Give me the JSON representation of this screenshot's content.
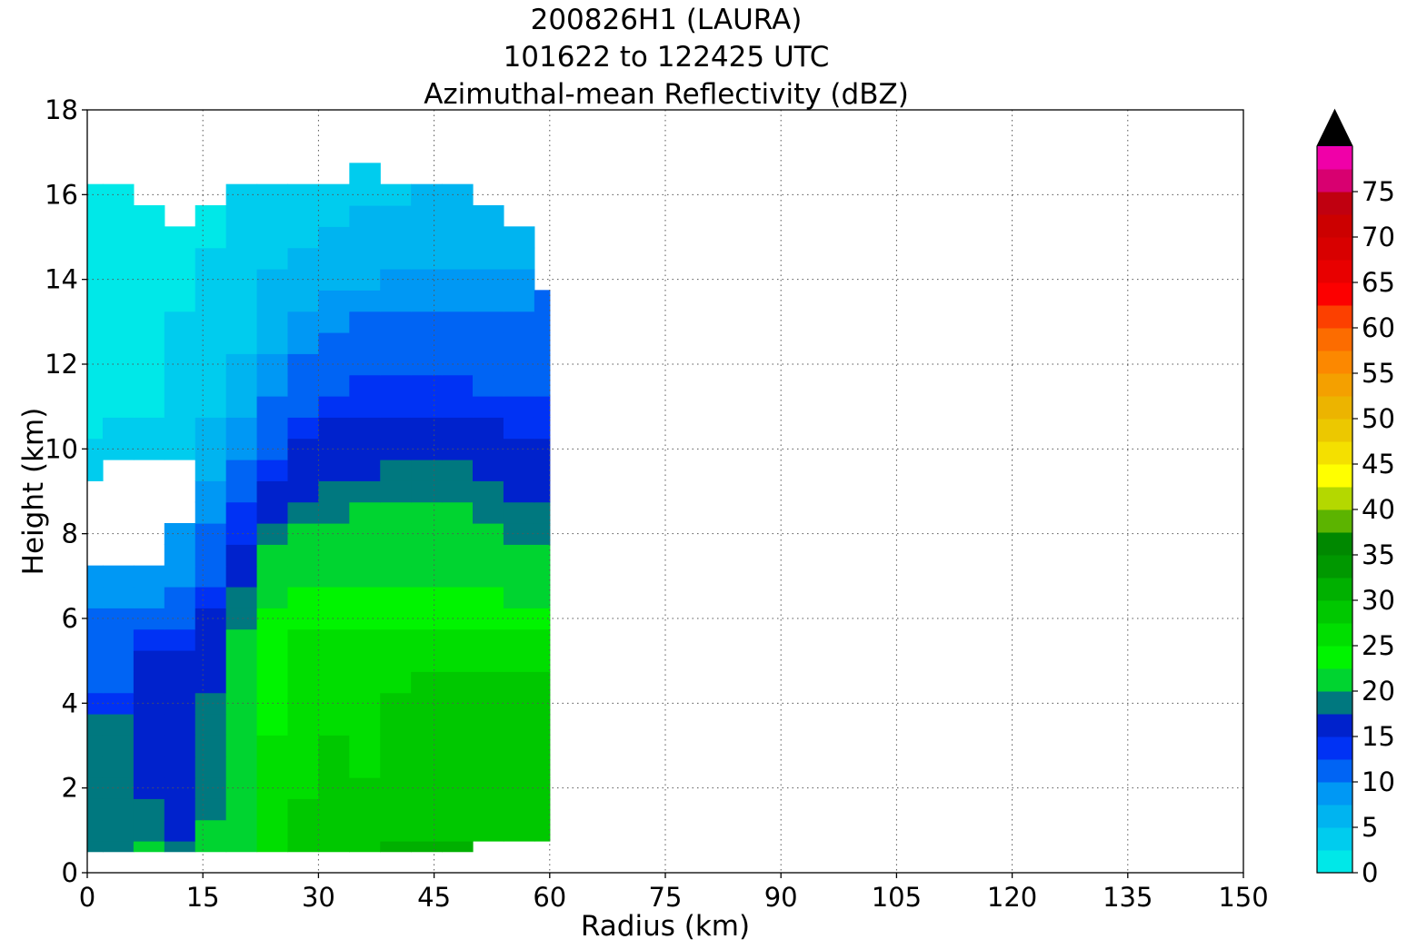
{
  "chart_data": {
    "type": "heatmap",
    "title_lines": [
      "200826H1 (LAURA)",
      "101622 to 122425 UTC",
      "Azimuthal-mean Reflectivity (dBZ)"
    ],
    "xlabel": "Radius (km)",
    "ylabel": "Height (km)",
    "xlim": [
      0,
      150
    ],
    "ylim": [
      0,
      18
    ],
    "x_ticks": [
      0,
      15,
      30,
      45,
      60,
      75,
      90,
      105,
      120,
      135,
      150
    ],
    "y_ticks": [
      0,
      2,
      4,
      6,
      8,
      10,
      12,
      14,
      16,
      18
    ],
    "grid": true,
    "colorbar": {
      "min": 0,
      "max": 80,
      "step": 2.5,
      "extend": "max",
      "ticks": [
        0,
        5,
        10,
        15,
        20,
        25,
        30,
        35,
        40,
        45,
        50,
        55,
        60,
        65,
        70,
        75
      ],
      "colors": [
        "#00e8e8",
        "#00ccee",
        "#00b4f0",
        "#0098f4",
        "#0064f4",
        "#0032f4",
        "#0022cc",
        "#00787f",
        "#00d430",
        "#00f400",
        "#00de00",
        "#00c800",
        "#00b000",
        "#009800",
        "#008800",
        "#5cb400",
        "#b4d800",
        "#ffff00",
        "#f4e000",
        "#ecc800",
        "#ecb400",
        "#f4a000",
        "#fc8800",
        "#fc6c00",
        "#fc4000",
        "#fc0000",
        "#e80000",
        "#d80000",
        "#cc0000",
        "#c00010",
        "#d80070",
        "#f000a8",
        "#f000f0",
        "#d030e0",
        "#a050d0",
        "#7840a0",
        "#3c1848"
      ],
      "over_color": "#000000"
    },
    "grid_x_km": [
      0,
      4,
      8,
      12,
      16,
      20,
      24,
      28,
      32,
      36,
      40,
      44,
      48,
      52,
      56,
      60
    ],
    "grid_y_km": [
      0.5,
      1,
      1.5,
      2,
      2.5,
      3,
      3.5,
      4,
      4.5,
      5,
      5.5,
      6,
      6.5,
      7,
      7.5,
      8,
      8.5,
      9,
      9.5,
      10,
      10.5,
      11,
      11.5,
      12,
      12.5,
      13,
      13.5,
      14,
      14.5,
      15,
      15.5,
      16,
      16.5
    ],
    "reflectivity_dbz": [
      [
        19,
        19,
        21,
        18,
        20,
        22,
        26,
        28,
        28,
        28,
        30,
        30,
        30,
        null,
        null,
        null
      ],
      [
        18,
        19,
        18,
        17,
        20,
        22,
        25,
        28,
        28,
        28,
        28,
        28,
        28,
        28,
        28,
        28
      ],
      [
        18,
        19,
        18,
        16,
        19,
        22,
        25,
        28,
        28,
        28,
        28,
        28,
        28,
        28,
        29,
        28
      ],
      [
        18,
        19,
        17,
        16,
        19,
        22,
        25,
        27,
        28,
        28,
        28,
        28,
        28,
        28,
        28,
        28
      ],
      [
        18,
        19,
        17,
        16,
        19,
        22,
        25,
        27,
        28,
        27,
        28,
        28,
        28,
        28,
        29,
        28
      ],
      [
        19,
        19,
        17,
        15,
        19,
        22,
        25,
        27,
        28,
        27,
        28,
        28,
        29,
        28,
        28,
        28
      ],
      [
        19,
        18,
        16,
        15,
        19,
        22,
        24,
        27,
        27,
        27,
        28,
        28,
        28,
        29,
        28,
        28
      ],
      [
        14,
        13,
        15,
        15,
        18,
        22,
        24,
        27,
        27,
        27,
        28,
        28,
        28,
        28,
        28,
        28
      ],
      [
        12,
        12,
        15,
        15,
        17,
        21,
        24,
        27,
        27,
        27,
        27,
        28,
        28,
        28,
        28,
        28
      ],
      [
        11,
        11,
        15,
        15,
        16,
        20,
        24,
        26,
        26,
        26,
        27,
        27,
        27,
        27,
        27,
        27
      ],
      [
        11,
        11,
        14,
        14,
        15,
        20,
        24,
        25,
        25,
        26,
        26,
        26,
        26,
        26,
        26,
        26
      ],
      [
        10,
        10,
        11,
        11,
        15,
        19,
        23,
        24,
        24,
        24,
        24,
        24,
        24,
        24,
        24,
        24
      ],
      [
        9,
        9,
        9,
        10,
        13,
        18,
        22,
        23,
        23,
        23,
        23,
        23,
        23,
        23,
        22,
        22
      ],
      [
        8,
        8,
        8,
        9,
        12,
        17,
        21,
        21,
        21,
        22,
        22,
        22,
        21,
        21,
        20,
        21
      ],
      [
        null,
        null,
        null,
        9,
        11,
        16,
        20,
        20,
        21,
        21,
        21,
        21,
        21,
        20,
        20,
        20
      ],
      [
        null,
        null,
        null,
        8,
        10,
        14,
        18,
        20,
        20,
        20,
        20,
        20,
        20,
        20,
        19,
        19
      ],
      [
        null,
        null,
        null,
        null,
        9,
        13,
        17,
        19,
        19,
        20,
        20,
        20,
        20,
        19,
        18,
        18
      ],
      [
        null,
        null,
        null,
        null,
        8,
        12,
        15,
        17,
        18,
        18,
        19,
        19,
        19,
        18,
        17,
        17
      ],
      [
        3,
        null,
        null,
        null,
        7,
        11,
        14,
        16,
        17,
        17,
        18,
        18,
        18,
        17,
        16,
        16
      ],
      [
        3,
        3,
        3,
        3,
        6,
        9,
        12,
        15,
        16,
        16,
        16,
        16,
        16,
        16,
        15,
        15
      ],
      [
        2,
        3,
        3,
        3,
        5,
        8,
        11,
        14,
        15,
        15,
        15,
        15,
        15,
        15,
        14,
        14
      ],
      [
        2,
        2,
        2,
        3,
        4,
        7,
        10,
        12,
        14,
        14,
        14,
        14,
        14,
        14,
        13,
        13
      ],
      [
        2,
        2,
        2,
        3,
        3,
        6,
        9,
        11,
        12,
        13,
        13,
        13,
        13,
        12,
        12,
        12
      ],
      [
        2,
        2,
        2,
        3,
        3,
        5,
        8,
        10,
        11,
        12,
        12,
        12,
        12,
        12,
        11,
        11
      ],
      [
        1,
        2,
        2,
        3,
        3,
        4,
        7,
        9,
        10,
        11,
        11,
        11,
        11,
        11,
        11,
        10
      ],
      [
        1,
        1,
        2,
        3,
        3,
        4,
        6,
        8,
        9,
        10,
        10,
        10,
        10,
        10,
        10,
        10
      ],
      [
        1,
        1,
        2,
        2,
        3,
        4,
        5,
        7,
        8,
        9,
        9,
        9,
        9,
        9,
        8,
        10
      ],
      [
        1,
        1,
        2,
        2,
        3,
        4,
        5,
        6,
        7,
        7,
        8,
        8,
        8,
        8,
        8,
        null
      ],
      [
        1,
        1,
        2,
        2,
        3,
        3,
        4,
        5,
        6,
        6,
        7,
        7,
        7,
        7,
        7,
        null
      ],
      [
        1,
        1,
        2,
        2,
        2,
        3,
        4,
        4,
        5,
        5,
        6,
        6,
        6,
        6,
        7,
        null
      ],
      [
        1,
        1,
        2,
        null,
        2,
        3,
        3,
        4,
        4,
        5,
        5,
        5,
        5,
        7,
        null,
        null
      ],
      [
        1,
        1,
        null,
        null,
        null,
        3,
        3,
        3,
        4,
        4,
        4,
        5,
        5,
        null,
        null,
        null
      ],
      [
        null,
        null,
        null,
        null,
        null,
        null,
        null,
        null,
        null,
        4,
        null,
        null,
        null,
        null,
        null,
        null
      ]
    ]
  }
}
